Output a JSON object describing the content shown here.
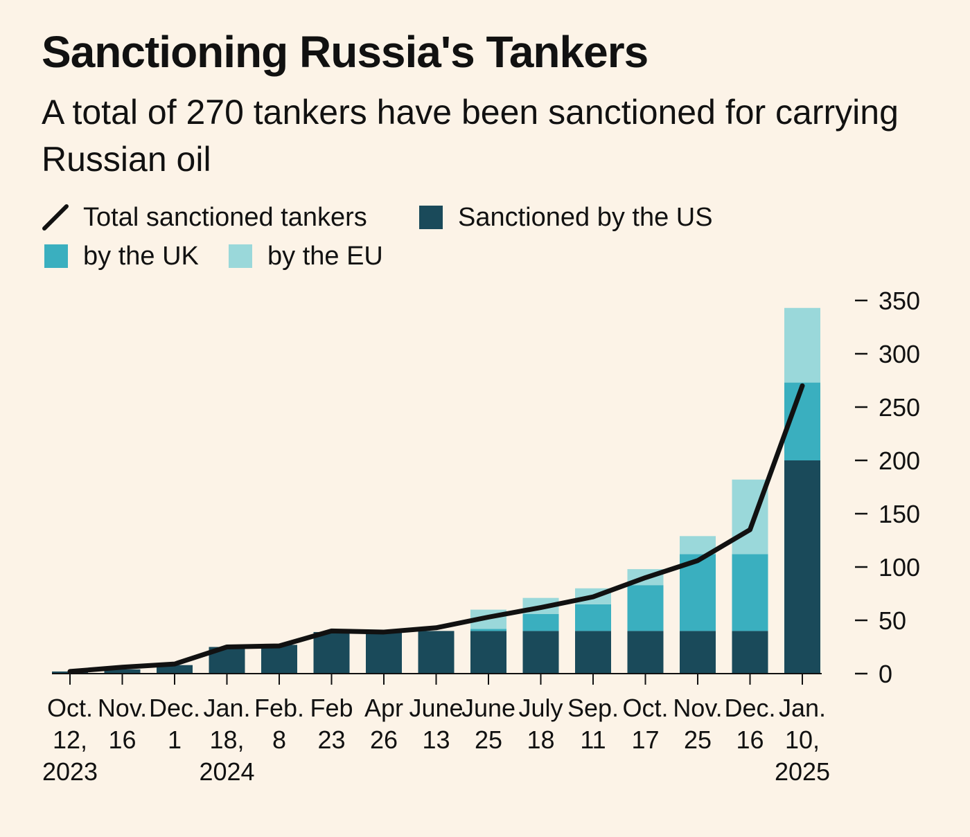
{
  "chart_data": {
    "type": "bar",
    "title": "Sanctioning Russia's Tankers",
    "subtitle": "A total of 270 tankers have been sanctioned for carrying Russian oil",
    "legend": {
      "line": "Total sanctioned tankers",
      "us": "Sanctioned by the US",
      "uk": "by the UK",
      "eu": "by the EU"
    },
    "categories": [
      [
        "Oct.",
        "12,",
        "2023"
      ],
      [
        "Nov.",
        "16",
        ""
      ],
      [
        "Dec.",
        "1",
        ""
      ],
      [
        "Jan.",
        "18,",
        "2024"
      ],
      [
        "Feb.",
        "8",
        ""
      ],
      [
        "Feb",
        "23",
        ""
      ],
      [
        "Apr",
        "26",
        ""
      ],
      [
        "June",
        "13",
        ""
      ],
      [
        "June",
        "25",
        ""
      ],
      [
        "July",
        "18",
        ""
      ],
      [
        "Sep.",
        "11",
        ""
      ],
      [
        "Oct.",
        "17",
        ""
      ],
      [
        "Nov.",
        "25",
        ""
      ],
      [
        "Dec.",
        "16",
        ""
      ],
      [
        "Jan.",
        "10,",
        "2025"
      ]
    ],
    "series": [
      {
        "name": "Sanctioned by the US",
        "color": "#1a4a5a",
        "values": [
          2,
          4,
          8,
          25,
          27,
          39,
          39,
          40,
          40,
          40,
          40,
          40,
          40,
          40,
          200
        ]
      },
      {
        "name": "by the UK",
        "color": "#3aafbf",
        "values": [
          0,
          0,
          0,
          0,
          0,
          0,
          0,
          0,
          2,
          16,
          25,
          43,
          72,
          72,
          73
        ]
      },
      {
        "name": "by the EU",
        "color": "#9ad8da",
        "values": [
          0,
          0,
          0,
          0,
          0,
          0,
          0,
          0,
          18,
          15,
          15,
          15,
          17,
          70,
          70
        ]
      },
      {
        "name": "Total sanctioned tankers",
        "type": "line",
        "color": "#111111",
        "values": [
          2,
          6,
          9,
          25,
          26,
          40,
          39,
          43,
          53,
          62,
          72,
          90,
          106,
          135,
          270
        ]
      }
    ],
    "y_ticks": [
      0,
      50,
      100,
      150,
      200,
      250,
      300,
      350
    ],
    "ylim": [
      0,
      350
    ],
    "xlabel": "",
    "ylabel": "",
    "legend_position": "top"
  }
}
